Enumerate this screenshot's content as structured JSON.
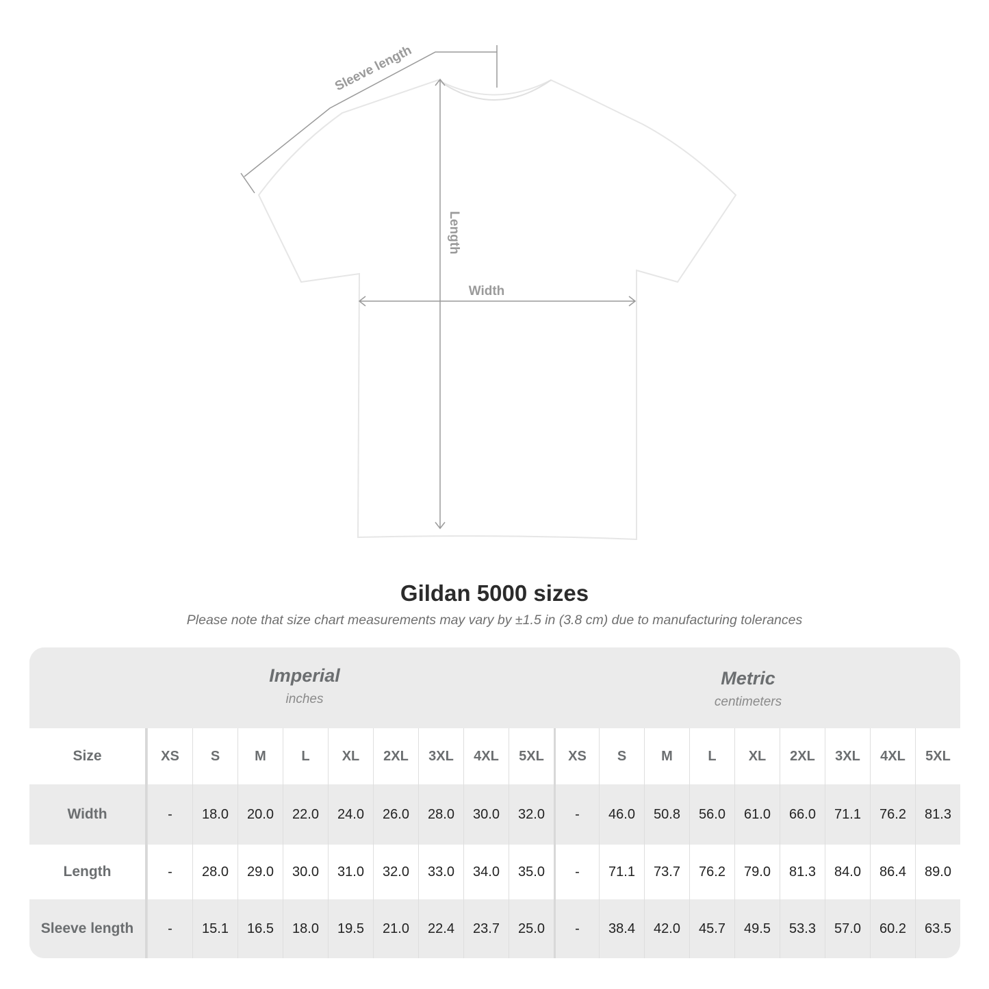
{
  "diagram": {
    "labels": {
      "sleeve": "Sleeve length",
      "length": "Length",
      "width": "Width"
    },
    "shirt_color": "#ffffff",
    "line_color": "#9a9a9a"
  },
  "title": "Gildan 5000 sizes",
  "note": "Please note that size chart measurements may vary by ±1.5 in (3.8 cm) due to manufacturing tolerances",
  "imperial": {
    "name": "Imperial",
    "unit": "inches"
  },
  "metric": {
    "name": "Metric",
    "unit": "centimeters"
  },
  "chart_data": {
    "type": "table",
    "size_label": "Size",
    "sizes": [
      "XS",
      "S",
      "M",
      "L",
      "XL",
      "2XL",
      "3XL",
      "4XL",
      "5XL"
    ],
    "rows": [
      {
        "label": "Width",
        "imperial": [
          "-",
          "18.0",
          "20.0",
          "22.0",
          "24.0",
          "26.0",
          "28.0",
          "30.0",
          "32.0"
        ],
        "metric": [
          "-",
          "46.0",
          "50.8",
          "56.0",
          "61.0",
          "66.0",
          "71.1",
          "76.2",
          "81.3"
        ]
      },
      {
        "label": "Length",
        "imperial": [
          "-",
          "28.0",
          "29.0",
          "30.0",
          "31.0",
          "32.0",
          "33.0",
          "34.0",
          "35.0"
        ],
        "metric": [
          "-",
          "71.1",
          "73.7",
          "76.2",
          "79.0",
          "81.3",
          "84.0",
          "86.4",
          "89.0"
        ]
      },
      {
        "label": "Sleeve length",
        "imperial": [
          "-",
          "15.1",
          "16.5",
          "18.0",
          "19.5",
          "21.0",
          "22.4",
          "23.7",
          "25.0"
        ],
        "metric": [
          "-",
          "38.4",
          "42.0",
          "45.7",
          "49.5",
          "53.3",
          "57.0",
          "60.2",
          "63.5"
        ]
      }
    ]
  }
}
